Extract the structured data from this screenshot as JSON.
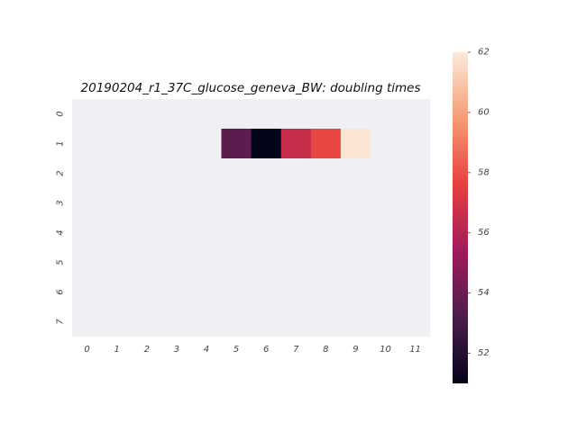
{
  "chart_data": {
    "type": "heatmap",
    "title": "20190204_r1_37C_glucose_geneva_BW: doubling times",
    "xlabel": "",
    "ylabel": "",
    "x_categories": [
      "0",
      "1",
      "2",
      "3",
      "4",
      "5",
      "6",
      "7",
      "8",
      "9",
      "10",
      "11"
    ],
    "y_categories": [
      "0",
      "1",
      "2",
      "3",
      "4",
      "5",
      "6",
      "7"
    ],
    "cells": [
      {
        "row": 1,
        "col": 5,
        "value": 53.6
      },
      {
        "row": 1,
        "col": 6,
        "value": 51.0
      },
      {
        "row": 1,
        "col": 7,
        "value": 56.6
      },
      {
        "row": 1,
        "col": 8,
        "value": 57.8
      },
      {
        "row": 1,
        "col": 9,
        "value": 61.8
      }
    ],
    "missing_color": "#eff0f4",
    "colorbar": {
      "vmin": 51.0,
      "vmax": 62.0,
      "ticks": [
        "52",
        "54",
        "56",
        "58",
        "60",
        "62"
      ],
      "colormap": "rocket",
      "stops": [
        "#03051a",
        "#4c1d4b",
        "#a11a5b",
        "#e83f3f",
        "#f69c73",
        "#faebdd"
      ]
    },
    "grid": false
  }
}
